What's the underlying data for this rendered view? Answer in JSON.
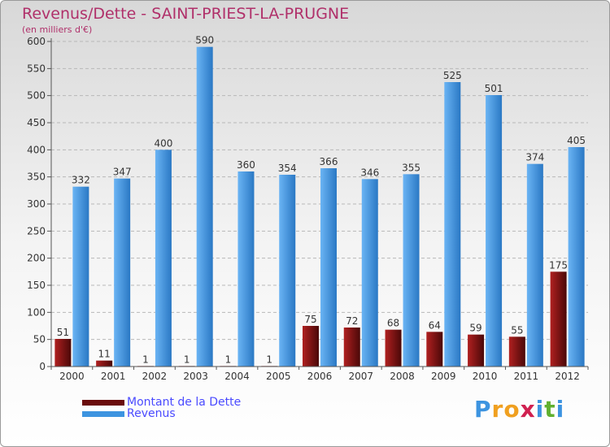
{
  "chart_data": {
    "type": "bar",
    "title": "Revenus/Dette - SAINT-PRIEST-LA-PRUGNE",
    "subtitle": "(en milliers d'€)",
    "categories": [
      "2000",
      "2001",
      "2002",
      "2003",
      "2004",
      "2005",
      "2006",
      "2007",
      "2008",
      "2009",
      "2010",
      "2011",
      "2012"
    ],
    "series": [
      {
        "name": "Montant de la Dette",
        "color": "#7a1010",
        "values": [
          51,
          11,
          1,
          1,
          1,
          1,
          75,
          72,
          68,
          64,
          59,
          55,
          175
        ]
      },
      {
        "name": "Revenus",
        "color": "#3d94e0",
        "values": [
          332,
          347,
          400,
          590,
          360,
          354,
          366,
          346,
          355,
          525,
          501,
          374,
          405
        ]
      }
    ],
    "ylim": [
      0,
      600
    ],
    "yticks": [
      0,
      50,
      100,
      150,
      200,
      250,
      300,
      350,
      400,
      450,
      500,
      550,
      600
    ],
    "grid": "horizontal-dashed",
    "legend": "bottom-left"
  },
  "logo": {
    "letters": [
      "P",
      "r",
      "o",
      "x",
      "i",
      "t",
      "i"
    ],
    "colors": [
      "#3d94e0",
      "#f0a020",
      "#f0a020",
      "#d02050",
      "#3d94e0",
      "#60b030",
      "#3d94e0"
    ]
  }
}
